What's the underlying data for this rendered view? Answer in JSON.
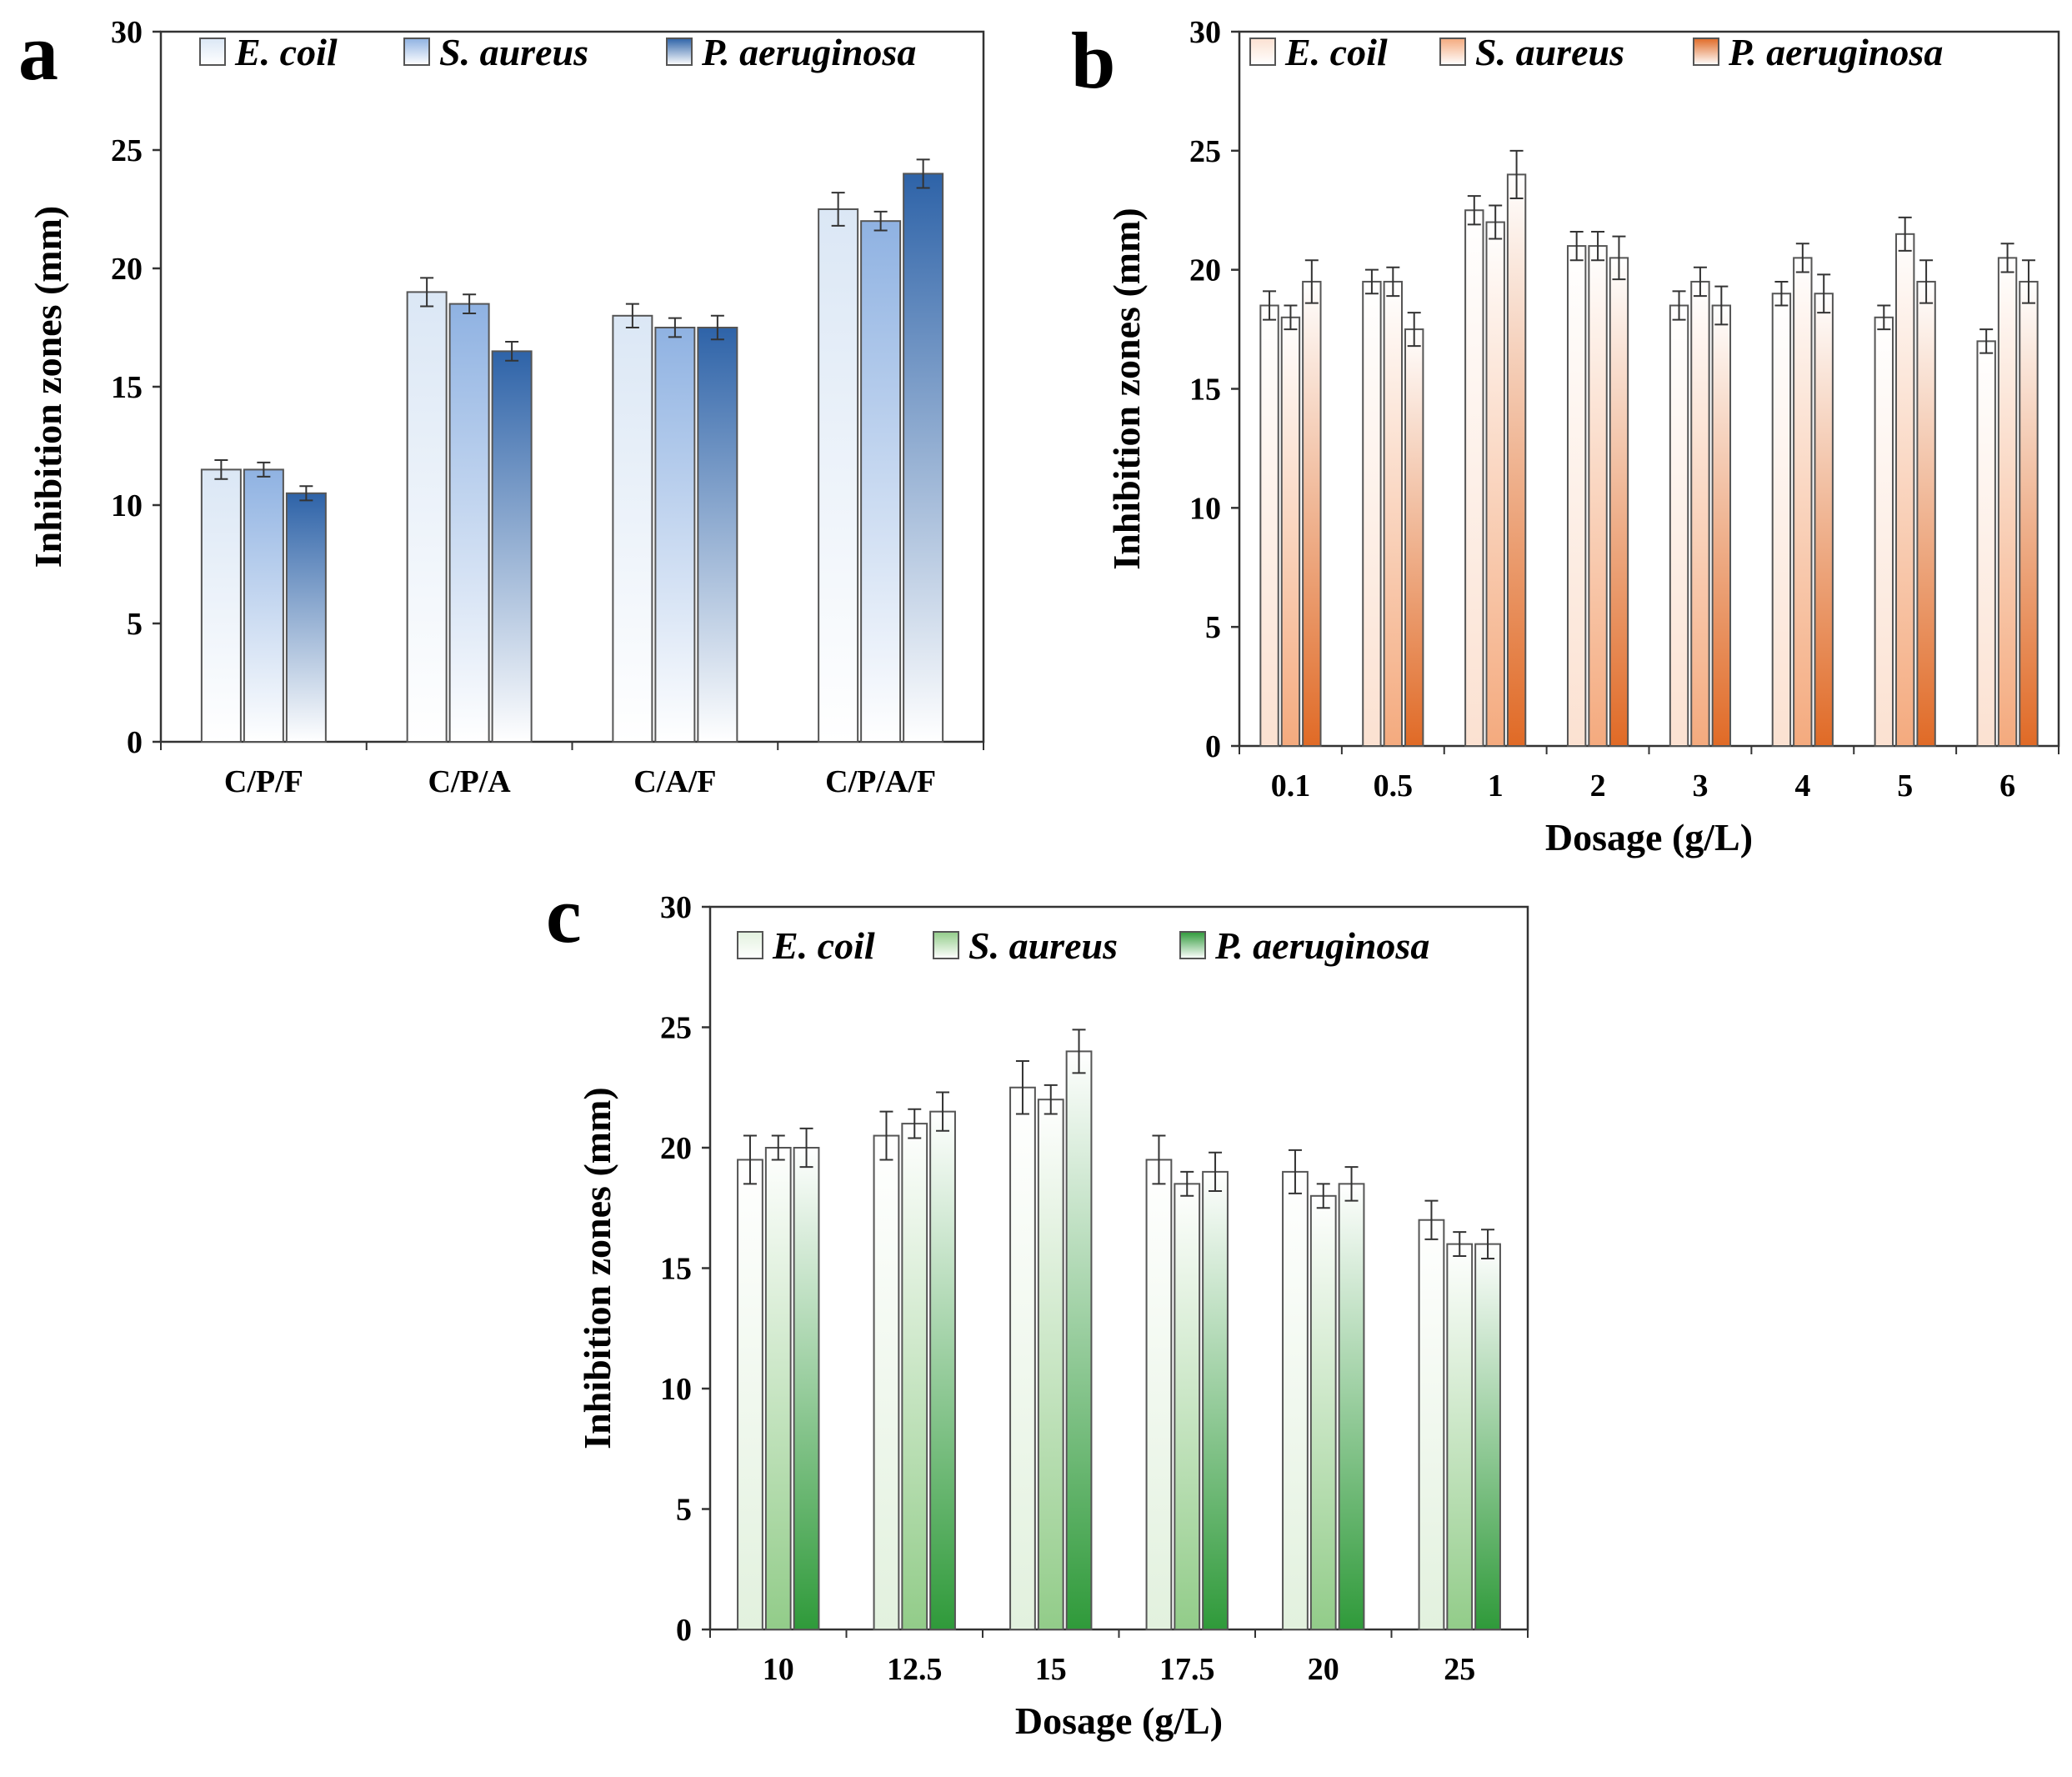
{
  "chart_data": [
    {
      "type": "bar",
      "panel_label": "a",
      "categories": [
        "C/P/F",
        "C/P/A",
        "C/A/F",
        "C/P/A/F"
      ],
      "series": [
        {
          "name": "E. coil",
          "values": [
            11.5,
            19.0,
            18.0,
            22.5
          ],
          "errors": [
            0.4,
            0.6,
            0.5,
            0.7
          ],
          "color": "#dbe7f5"
        },
        {
          "name": "S. aureus",
          "values": [
            11.5,
            18.5,
            17.5,
            22.0
          ],
          "errors": [
            0.3,
            0.4,
            0.4,
            0.4
          ],
          "color": "#8fb2e2"
        },
        {
          "name": "P. aeruginosa",
          "values": [
            10.5,
            16.5,
            17.5,
            24.0
          ],
          "errors": [
            0.3,
            0.4,
            0.5,
            0.6
          ],
          "color": "#2e63a8"
        }
      ],
      "xlabel": "",
      "ylabel": "Inhibition zones (mm)",
      "ylim": [
        0,
        30
      ],
      "yticks": [
        0,
        5,
        10,
        15,
        20,
        25,
        30
      ],
      "legend": "top"
    },
    {
      "type": "bar",
      "panel_label": "b",
      "categories": [
        "0.1",
        "0.5",
        "1",
        "2",
        "3",
        "4",
        "5",
        "6"
      ],
      "series": [
        {
          "name": "E. coil",
          "values": [
            18.5,
            19.5,
            22.5,
            21.0,
            18.5,
            19.0,
            18.0,
            17.0
          ],
          "errors": [
            0.6,
            0.5,
            0.6,
            0.6,
            0.6,
            0.5,
            0.5,
            0.5
          ],
          "color": "#fbe1d1"
        },
        {
          "name": "S. aureus",
          "values": [
            18.0,
            19.5,
            22.0,
            21.0,
            19.5,
            20.5,
            21.5,
            20.5
          ],
          "errors": [
            0.5,
            0.6,
            0.7,
            0.6,
            0.6,
            0.6,
            0.7,
            0.6
          ],
          "color": "#f4aa7e"
        },
        {
          "name": "P. aeruginosa",
          "values": [
            19.5,
            17.5,
            24.0,
            20.5,
            18.5,
            19.0,
            19.5,
            19.5
          ],
          "errors": [
            0.9,
            0.7,
            1.0,
            0.9,
            0.8,
            0.8,
            0.9,
            0.9
          ],
          "color": "#e06a26"
        }
      ],
      "xlabel": "Dosage (g/L)",
      "ylabel": "Inhibition zones (mm)",
      "ylim": [
        0,
        30
      ],
      "yticks": [
        0,
        5,
        10,
        15,
        20,
        25,
        30
      ],
      "legend": "top"
    },
    {
      "type": "bar",
      "panel_label": "c",
      "categories": [
        "10",
        "12.5",
        "15",
        "17.5",
        "20",
        "25"
      ],
      "series": [
        {
          "name": "E. coil",
          "values": [
            19.5,
            20.5,
            22.5,
            19.5,
            19.0,
            17.0
          ],
          "errors": [
            1.0,
            1.0,
            1.1,
            1.0,
            0.9,
            0.8
          ],
          "color": "#e2f1de"
        },
        {
          "name": "S. aureus",
          "values": [
            20.0,
            21.0,
            22.0,
            18.5,
            18.0,
            16.0
          ],
          "errors": [
            0.5,
            0.6,
            0.6,
            0.5,
            0.5,
            0.5
          ],
          "color": "#92cc89"
        },
        {
          "name": "P. aeruginosa",
          "values": [
            20.0,
            21.5,
            24.0,
            19.0,
            18.5,
            16.0
          ],
          "errors": [
            0.8,
            0.8,
            0.9,
            0.8,
            0.7,
            0.6
          ],
          "color": "#2f9a3a"
        }
      ],
      "xlabel": "Dosage (g/L)",
      "ylabel": "Inhibition zones (mm)",
      "ylim": [
        0,
        30
      ],
      "yticks": [
        0,
        5,
        10,
        15,
        20,
        25,
        30
      ],
      "legend": "top"
    }
  ]
}
